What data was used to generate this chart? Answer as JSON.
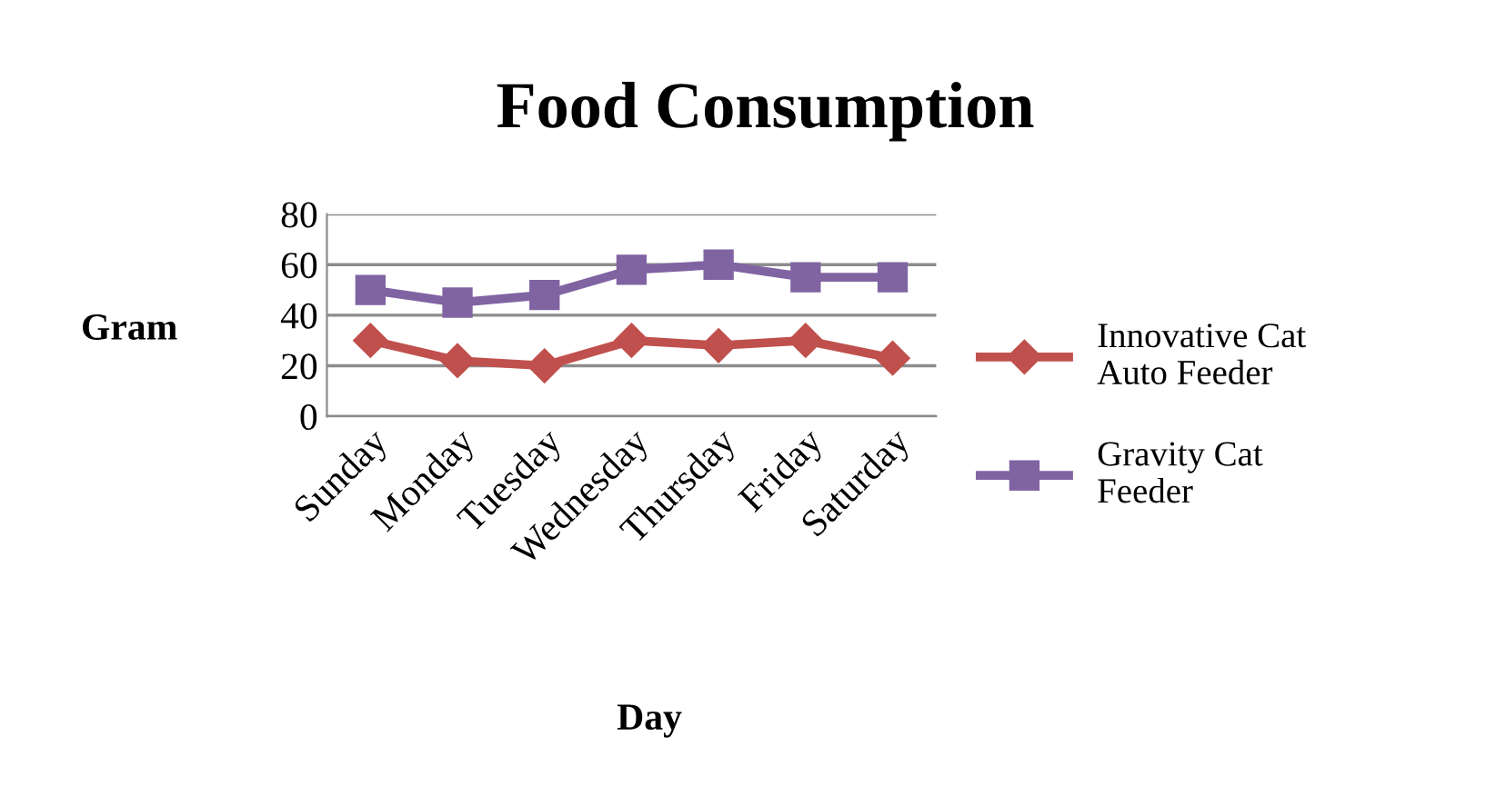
{
  "chart_data": {
    "type": "line",
    "title": "Food Consumption",
    "xlabel": "Day",
    "ylabel": "Gram",
    "categories": [
      "Sunday",
      "Monday",
      "Tuesday",
      "Wednesday",
      "Thursday",
      "Friday",
      "Saturday"
    ],
    "series": [
      {
        "name": "Innovative Cat Auto Feeder",
        "color": "#c0504d",
        "marker": "diamond",
        "values": [
          30,
          22,
          20,
          30,
          28,
          30,
          23
        ]
      },
      {
        "name": "Gravity Cat Feeder",
        "color": "#8064a2",
        "marker": "square",
        "values": [
          50,
          45,
          48,
          58,
          60,
          55,
          55
        ]
      }
    ],
    "ylim": [
      0,
      80
    ],
    "yticks": [
      0,
      20,
      40,
      60,
      80
    ],
    "grid": "y",
    "legend": "right",
    "line_style": "solid"
  }
}
